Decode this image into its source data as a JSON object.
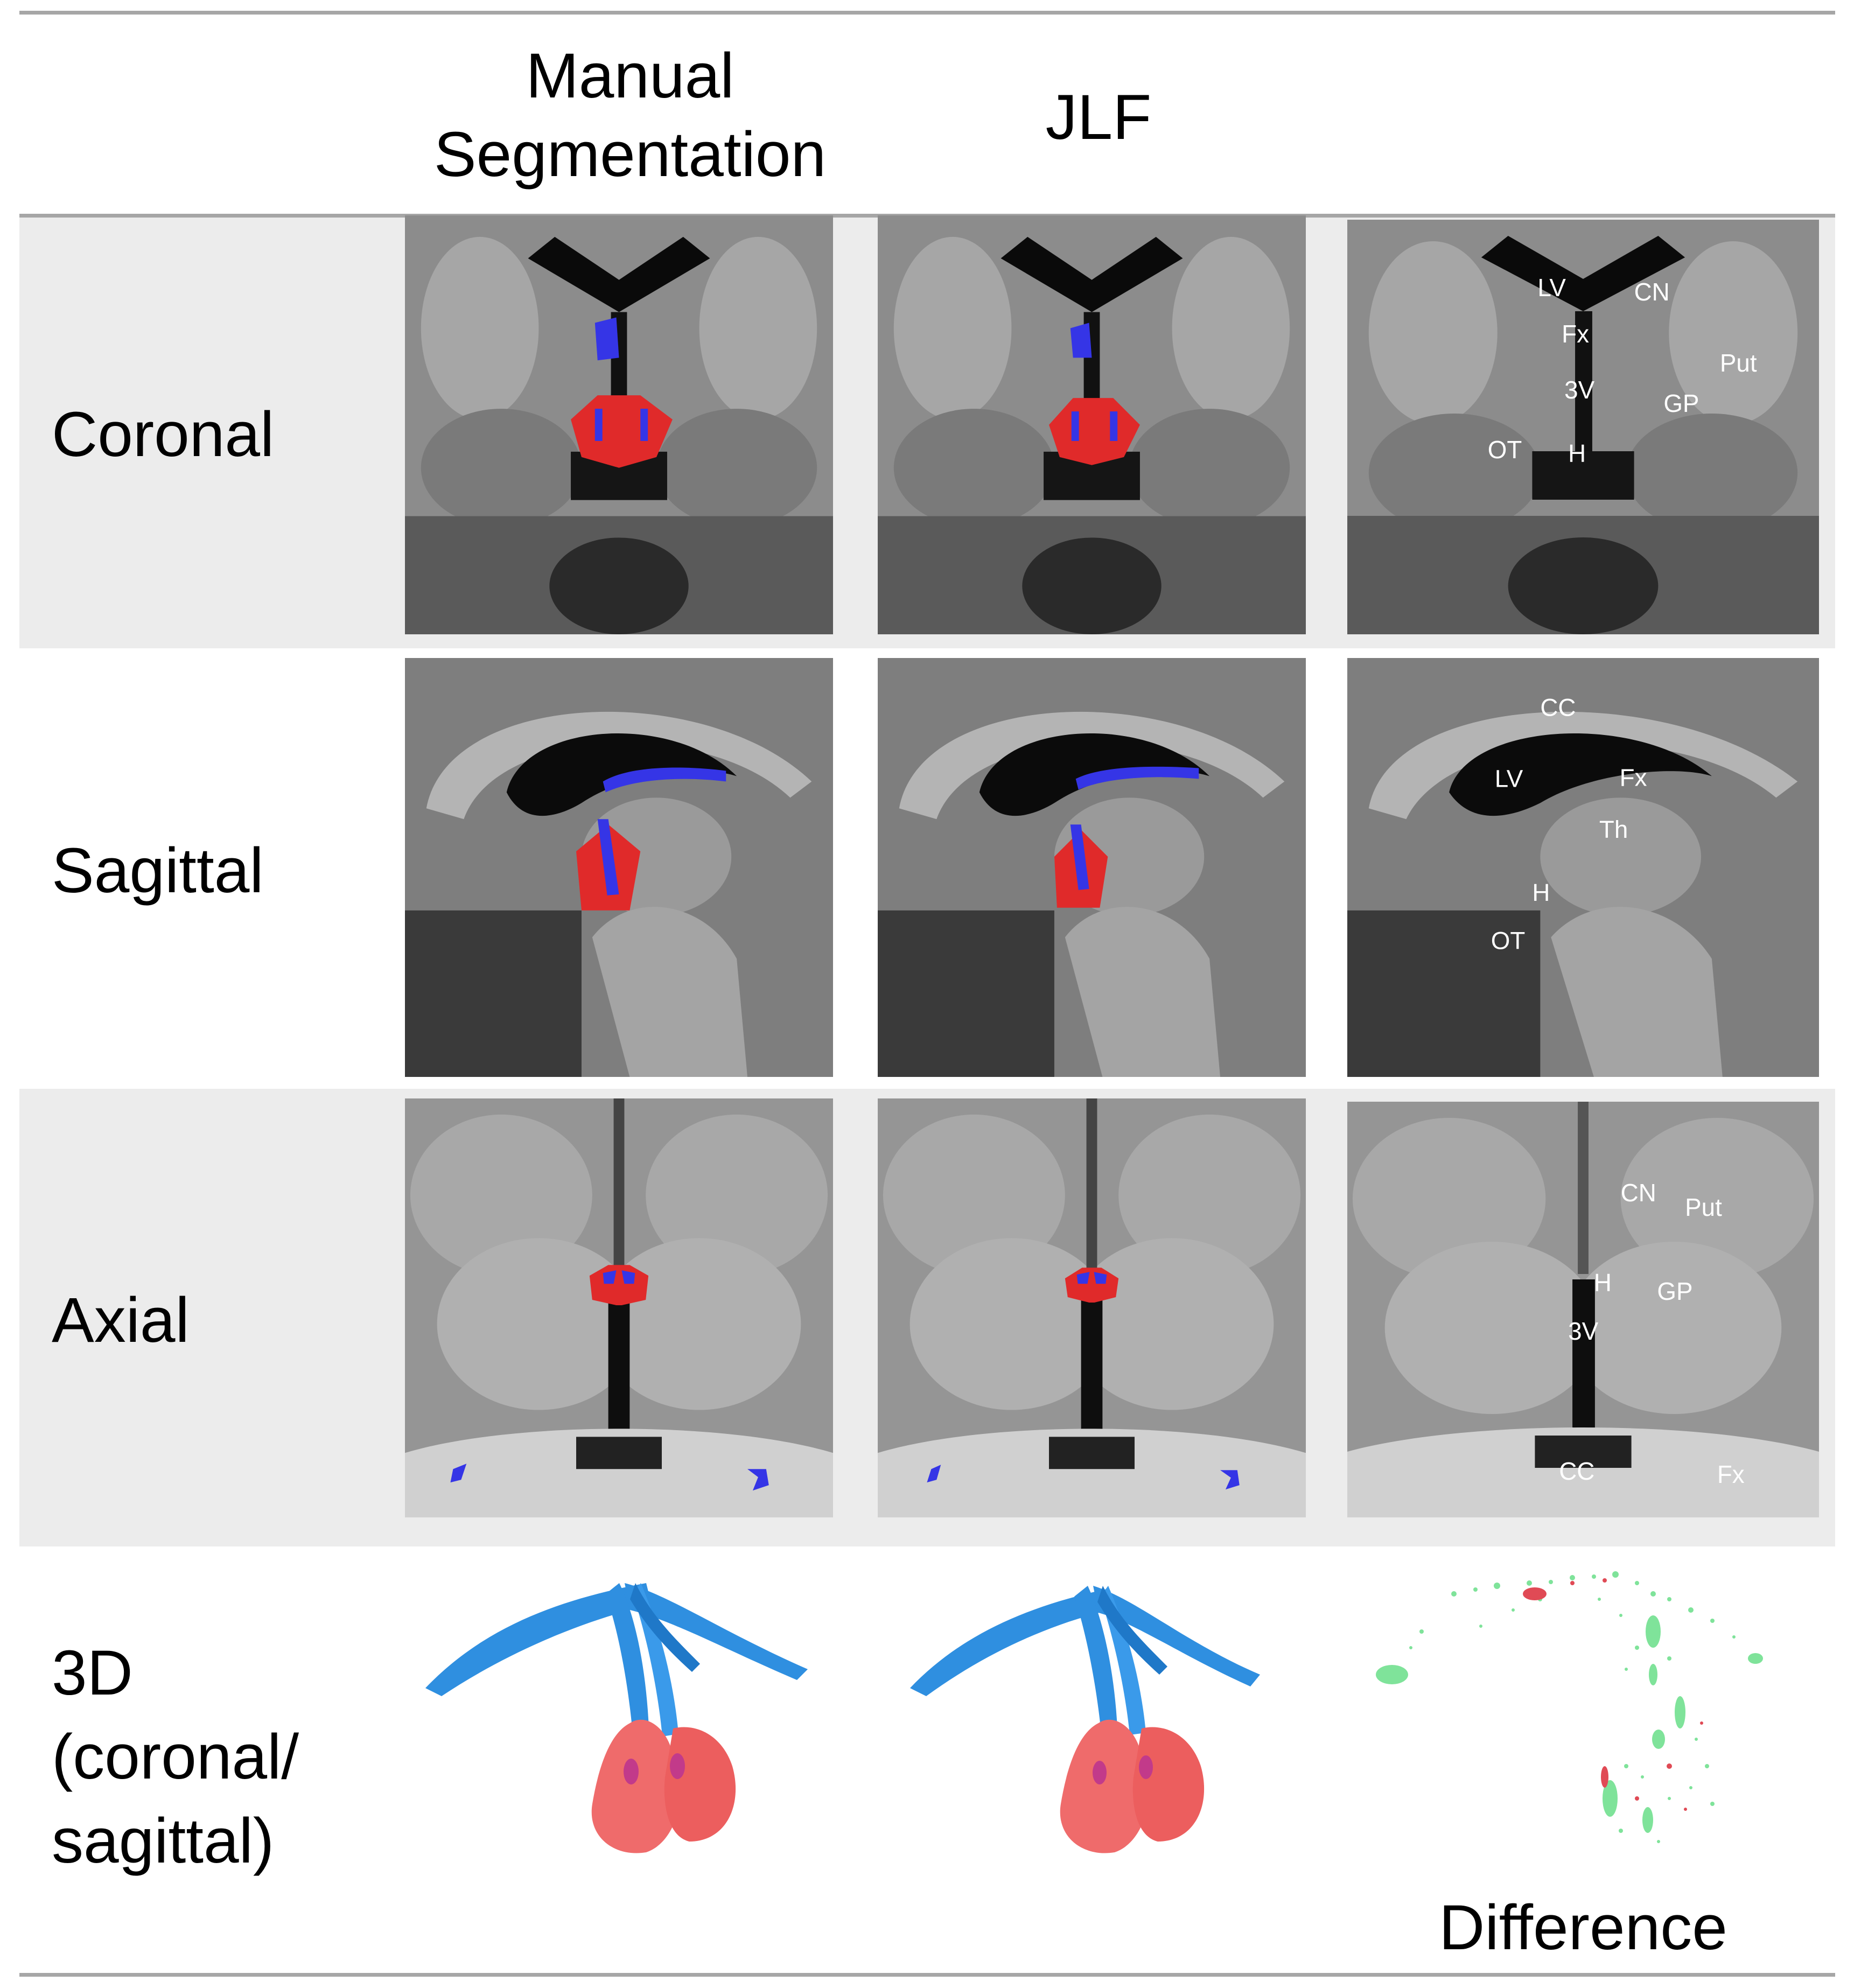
{
  "columns": {
    "manual_line1": "Manual",
    "manual_line2": "Segmentation",
    "jlf": "JLF",
    "difference": "Difference"
  },
  "rows": {
    "coronal": "Coronal",
    "sagittal": "Sagittal",
    "axial": "Axial",
    "three_d_line1": "3D",
    "three_d_line2": "(coronal/",
    "three_d_line3": "sagittal)"
  },
  "annotations": {
    "coronal": [
      "LV",
      "CN",
      "Fx",
      "Put",
      "3V",
      "GP",
      "OT",
      "H"
    ],
    "sagittal": [
      "CC",
      "LV",
      "Fx",
      "Th",
      "H",
      "OT"
    ],
    "axial": [
      "CN",
      "Put",
      "H",
      "GP",
      "3V",
      "CC",
      "Fx"
    ]
  },
  "colors": {
    "segmentation_red": "#e02a2a",
    "segmentation_blue": "#3535e6",
    "render_blue": "#2f8fe0",
    "render_red": "#ef6b6b",
    "difference_green": "#7fe39a",
    "difference_red": "#e04a55",
    "band_gray": "#ececec",
    "rule_gray": "#a6a6a6"
  }
}
